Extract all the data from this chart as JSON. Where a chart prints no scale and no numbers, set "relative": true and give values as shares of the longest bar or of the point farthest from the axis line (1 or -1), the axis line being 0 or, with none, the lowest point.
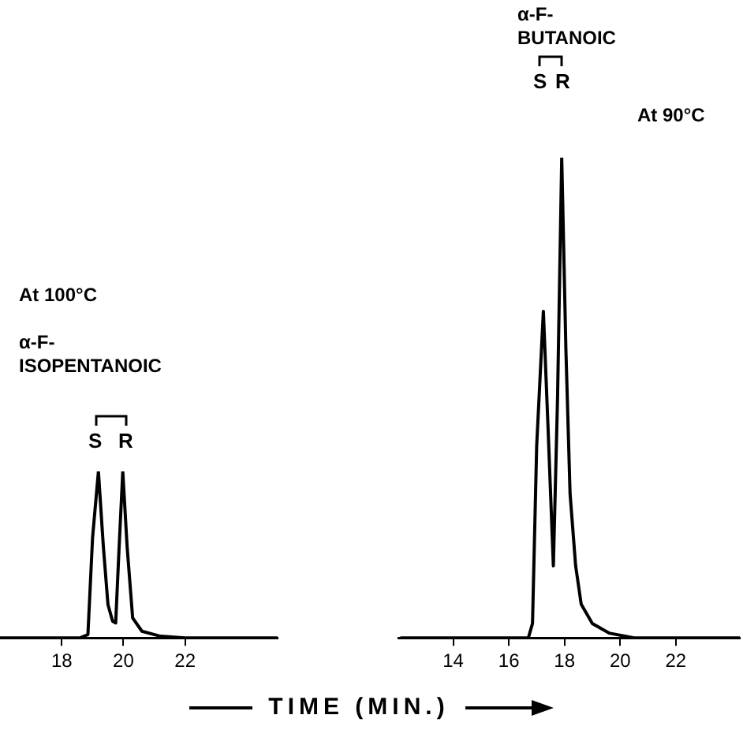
{
  "chart_data": [
    {
      "type": "line",
      "relative": true,
      "xlim": [
        16,
        25
      ],
      "xticks": [
        18,
        20,
        22
      ],
      "x": [
        16,
        18.6,
        18.85,
        19.0,
        19.19,
        19.35,
        19.5,
        19.65,
        19.75,
        19.85,
        19.98,
        20.12,
        20.3,
        20.6,
        21.2,
        22,
        25
      ],
      "values": [
        0,
        0,
        0.02,
        0.6,
        1.0,
        0.55,
        0.2,
        0.1,
        0.09,
        0.5,
        1.0,
        0.55,
        0.12,
        0.04,
        0.01,
        0,
        0
      ],
      "color": "#000000",
      "grid": false,
      "legend": false,
      "marker": "none",
      "line_style": "solid",
      "annotations": [
        "At 100°C",
        "α-F-\nISOPENTANOIC",
        "S",
        "R"
      ]
    },
    {
      "type": "line",
      "relative": true,
      "xlim": [
        12,
        24.3
      ],
      "xticks": [
        14,
        16,
        18,
        20,
        22
      ],
      "xlabel": "TIME (MIN.)",
      "x": [
        12.1,
        16.7,
        16.85,
        17.0,
        17.24,
        17.4,
        17.6,
        17.75,
        17.9,
        18.05,
        18.2,
        18.4,
        18.6,
        19.0,
        19.6,
        20.5,
        24.3
      ],
      "values": [
        0,
        0,
        0.03,
        0.4,
        0.68,
        0.45,
        0.15,
        0.5,
        1.0,
        0.6,
        0.3,
        0.15,
        0.07,
        0.03,
        0.01,
        0,
        0
      ],
      "color": "#000000",
      "grid": false,
      "legend": false,
      "marker": "none",
      "line_style": "solid",
      "annotations": [
        "α-F-\nBUTANOIC",
        "At 90°C",
        "S",
        "R"
      ]
    }
  ]
}
